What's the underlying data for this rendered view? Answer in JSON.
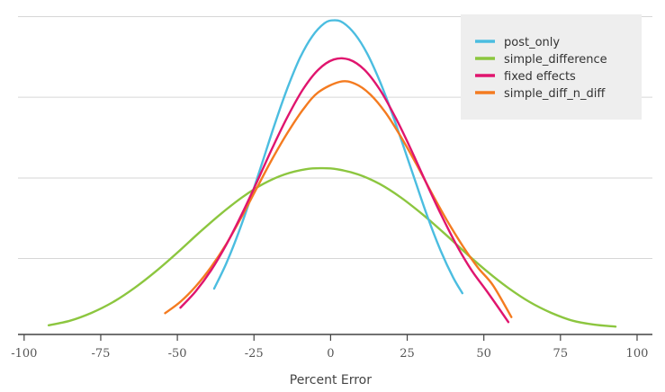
{
  "chart_data": {
    "type": "line",
    "title": "",
    "xlabel": "Percent Error",
    "ylabel": "",
    "xlim": [
      -102,
      105
    ],
    "ylim": [
      0,
      1
    ],
    "x_ticks": [
      -100,
      -75,
      -50,
      -25,
      0,
      25,
      50,
      75,
      100
    ],
    "x_tick_labels": [
      "-100",
      "-75",
      "-50",
      "-25",
      "0",
      "25",
      "50",
      "75",
      "100"
    ],
    "y_gridlines": [
      0.232,
      0.478,
      0.725,
      0.971
    ],
    "grid": "horizontal",
    "legend_position": "top-right",
    "series": [
      {
        "name": "post_only",
        "color": "#4bbde0",
        "x": [
          -38,
          -34,
          -30,
          -26,
          -22,
          -18,
          -14,
          -10,
          -6,
          -2,
          1,
          4,
          8,
          12,
          16,
          20,
          24,
          28,
          32,
          36,
          40,
          43
        ],
        "y": [
          0.14,
          0.218,
          0.312,
          0.419,
          0.534,
          0.649,
          0.755,
          0.845,
          0.911,
          0.951,
          0.96,
          0.953,
          0.917,
          0.857,
          0.775,
          0.677,
          0.569,
          0.458,
          0.35,
          0.254,
          0.174,
          0.126
        ]
      },
      {
        "name": "simple_difference",
        "color": "#8cc63f",
        "x": [
          -92,
          -85,
          -78,
          -71,
          -64,
          -57,
          -50,
          -43,
          -36,
          -29,
          -22,
          -15,
          -8,
          -3,
          2,
          9,
          16,
          23,
          30,
          37,
          44,
          51,
          58,
          65,
          72,
          79,
          86,
          93
        ],
        "y": [
          0.028,
          0.042,
          0.066,
          0.099,
          0.142,
          0.193,
          0.25,
          0.31,
          0.367,
          0.418,
          0.46,
          0.489,
          0.505,
          0.508,
          0.505,
          0.489,
          0.46,
          0.418,
          0.367,
          0.31,
          0.25,
          0.193,
          0.142,
          0.099,
          0.066,
          0.042,
          0.03,
          0.024
        ]
      },
      {
        "name": "fixed effects",
        "color": "#e0156e",
        "x": [
          -49,
          -44,
          -39,
          -34,
          -29,
          -24,
          -19,
          -14,
          -9,
          -4,
          1,
          6,
          11,
          16,
          21,
          26,
          31,
          36,
          41,
          46,
          51,
          58
        ],
        "y": [
          0.082,
          0.132,
          0.196,
          0.275,
          0.367,
          0.467,
          0.57,
          0.666,
          0.749,
          0.809,
          0.84,
          0.84,
          0.809,
          0.749,
          0.666,
          0.57,
          0.467,
          0.367,
          0.275,
          0.196,
          0.132,
          0.038
        ]
      },
      {
        "name": "simple_diff_n_diff",
        "color": "#f47b20",
        "x": [
          -54,
          -49,
          -44,
          -39,
          -34,
          -29,
          -24,
          -19,
          -14,
          -9,
          -4,
          3,
          8,
          13,
          18,
          23,
          28,
          33,
          38,
          43,
          48,
          53,
          59
        ],
        "y": [
          0.065,
          0.1,
          0.147,
          0.206,
          0.277,
          0.36,
          0.449,
          0.537,
          0.617,
          0.687,
          0.74,
          0.772,
          0.766,
          0.733,
          0.677,
          0.603,
          0.52,
          0.432,
          0.348,
          0.272,
          0.205,
          0.15,
          0.053
        ]
      }
    ]
  }
}
